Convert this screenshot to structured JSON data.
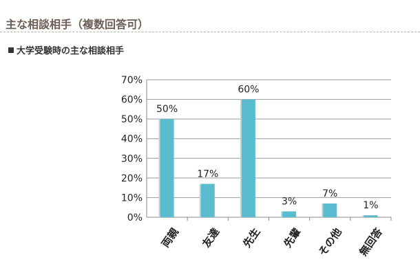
{
  "page": {
    "heading": "主な相談相手（複数回答可）"
  },
  "section": {
    "heading": "大学受験時の主な相談相手"
  },
  "chart_data": {
    "type": "bar",
    "categories": [
      "両親",
      "友達",
      "先生",
      "先輩",
      "その他",
      "無回答"
    ],
    "values": [
      50,
      17,
      60,
      3,
      7,
      1
    ],
    "data_labels": [
      "50%",
      "17%",
      "60%",
      "3%",
      "7%",
      "1%"
    ],
    "y_tick_labels": [
      "0%",
      "10%",
      "20%",
      "30%",
      "40%",
      "50%",
      "60%",
      "70%"
    ],
    "ylim": [
      0,
      70
    ],
    "grid": true,
    "legend": "none",
    "bar_color": "#5bbcd0",
    "bar_shadow_color": "#c8d3d8",
    "gridline_color": "#999999",
    "axis_color": "#888888"
  }
}
